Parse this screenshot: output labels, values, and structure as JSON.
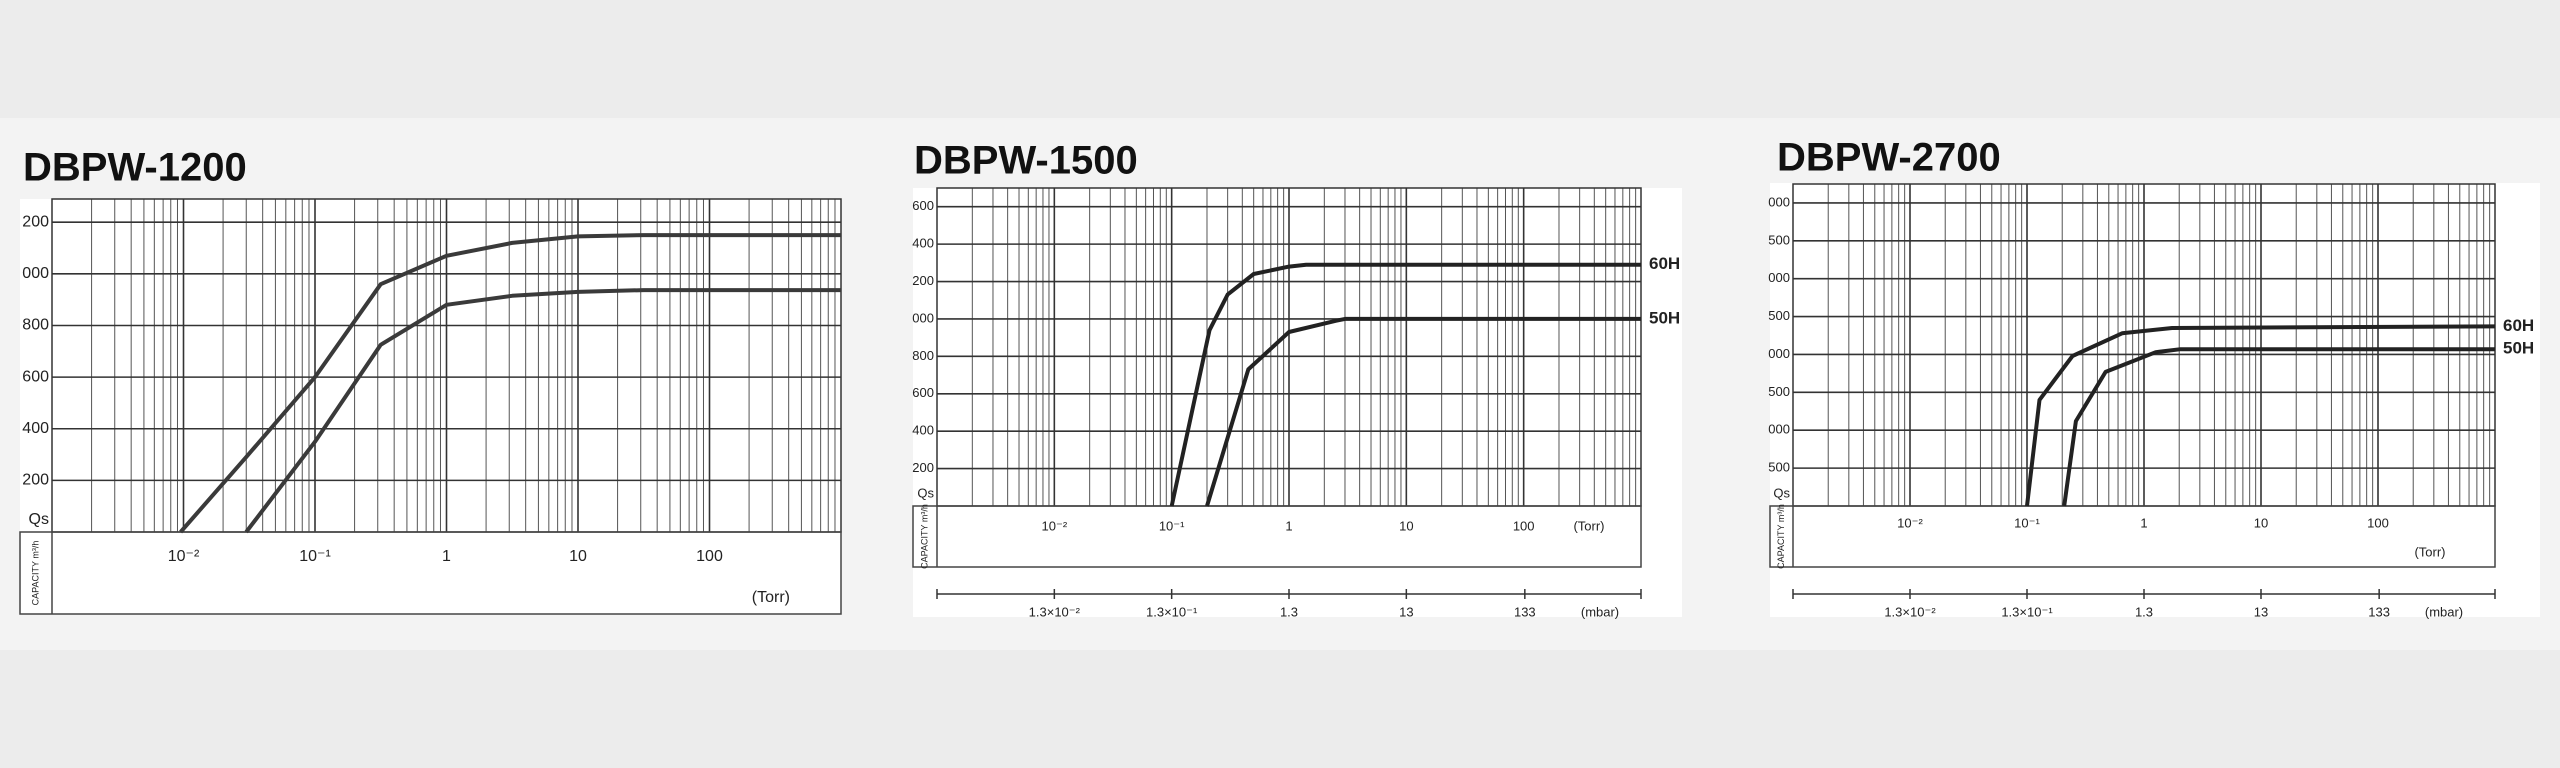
{
  "chart_data": [
    {
      "type": "line",
      "title": "DBPW-1200",
      "log_x": true,
      "grid": true,
      "minor_grid": true,
      "xlabel": "(Torr)",
      "ylabel": "CAPACITY m³/h",
      "y_symbol": "Qs",
      "xlim": [
        0.001,
        1000
      ],
      "xticks": [
        {
          "value": 0.01,
          "label": "10⁻²"
        },
        {
          "value": 0.1,
          "label": "10⁻¹"
        },
        1,
        10,
        100
      ],
      "ylim": [
        0,
        1290
      ],
      "yticks": [
        200,
        400,
        600,
        800,
        {
          "value": 1000,
          "label": "000"
        },
        {
          "value": 1200,
          "label": "200"
        }
      ],
      "series": [
        {
          "color": "#3a3a3a",
          "x": [
            0.0095,
            0.03,
            0.1,
            0.316,
            1,
            3.16,
            10,
            31.6,
            100,
            1000
          ],
          "values": [
            0,
            290,
            600,
            960,
            1070,
            1120,
            1145,
            1150,
            1150,
            1150
          ]
        },
        {
          "color": "#3a3a3a",
          "x": [
            0.03,
            0.1,
            0.316,
            1,
            3.16,
            10,
            31.6,
            100,
            1000
          ],
          "values": [
            0,
            350,
            725,
            880,
            915,
            930,
            937,
            937,
            937
          ]
        }
      ]
    },
    {
      "type": "line",
      "title": "DBPW-1500",
      "log_x": true,
      "grid": true,
      "minor_grid": true,
      "xlabel": "(Torr)",
      "ylabel": "CAPACITY m³/h",
      "y_symbol": "Qs",
      "xlim": [
        0.001,
        1000
      ],
      "xticks": [
        {
          "value": 0.01,
          "label": "10⁻²"
        },
        {
          "value": 0.1,
          "label": "10⁻¹"
        },
        1,
        10,
        100
      ],
      "ylim": [
        0,
        1700
      ],
      "yticks": [
        200,
        400,
        600,
        800,
        {
          "value": 1000,
          "label": "000"
        },
        {
          "value": 1200,
          "label": "200"
        },
        {
          "value": 1400,
          "label": "400"
        },
        {
          "value": 1600,
          "label": "600"
        }
      ],
      "x2label": "(mbar)",
      "x2lim": [
        0.0013,
        1300
      ],
      "x2ticks": [
        {
          "value": 0.013,
          "label": "1.3×10⁻²"
        },
        {
          "value": 0.13,
          "label": "1.3×10⁻¹"
        },
        1.3,
        13,
        133
      ],
      "series": [
        {
          "name": "60H",
          "color": "#222222",
          "x": [
            0.1,
            0.21,
            0.3,
            0.5,
            1,
            1.4,
            1000
          ],
          "values": [
            0,
            940,
            1130,
            1240,
            1280,
            1290,
            1290
          ]
        },
        {
          "name": "50H",
          "color": "#222222",
          "x": [
            0.2,
            0.45,
            1,
            2.5,
            3,
            1000
          ],
          "values": [
            0,
            730,
            930,
            990,
            1000,
            1000
          ]
        }
      ]
    },
    {
      "type": "line",
      "title": "DBPW-2700",
      "log_x": true,
      "grid": true,
      "minor_grid": true,
      "xlabel": "(Torr)",
      "ylabel": "CAPACITY m³/h",
      "y_symbol": "Qs",
      "xlim": [
        0.001,
        1000
      ],
      "xticks": [
        {
          "value": 0.01,
          "label": "10⁻²"
        },
        {
          "value": 0.1,
          "label": "10⁻¹"
        },
        1,
        10,
        100
      ],
      "ylim": [
        0,
        4250
      ],
      "yticks": [
        500,
        {
          "value": 1000,
          "label": "000"
        },
        {
          "value": 1500,
          "label": "500"
        },
        {
          "value": 2000,
          "label": "000"
        },
        {
          "value": 2500,
          "label": "500"
        },
        {
          "value": 3000,
          "label": "000"
        },
        {
          "value": 3500,
          "label": "500"
        },
        {
          "value": 4000,
          "label": "000"
        }
      ],
      "x2label": "(mbar)",
      "x2lim": [
        0.0013,
        1300
      ],
      "x2ticks": [
        {
          "value": 0.013,
          "label": "1.3×10⁻²"
        },
        {
          "value": 0.13,
          "label": "1.3×10⁻¹"
        },
        1.3,
        13,
        133
      ],
      "series": [
        {
          "name": "60H",
          "color": "#222222",
          "x": [
            0.1,
            0.128,
            0.245,
            0.65,
            1.74,
            1000
          ],
          "values": [
            0,
            1400,
            1980,
            2280,
            2350,
            2370
          ]
        },
        {
          "name": "50H",
          "color": "#222222",
          "x": [
            0.208,
            0.262,
            0.47,
            1.26,
            2.05,
            1000
          ],
          "values": [
            0,
            1120,
            1770,
            2030,
            2070,
            2070
          ]
        }
      ]
    }
  ]
}
